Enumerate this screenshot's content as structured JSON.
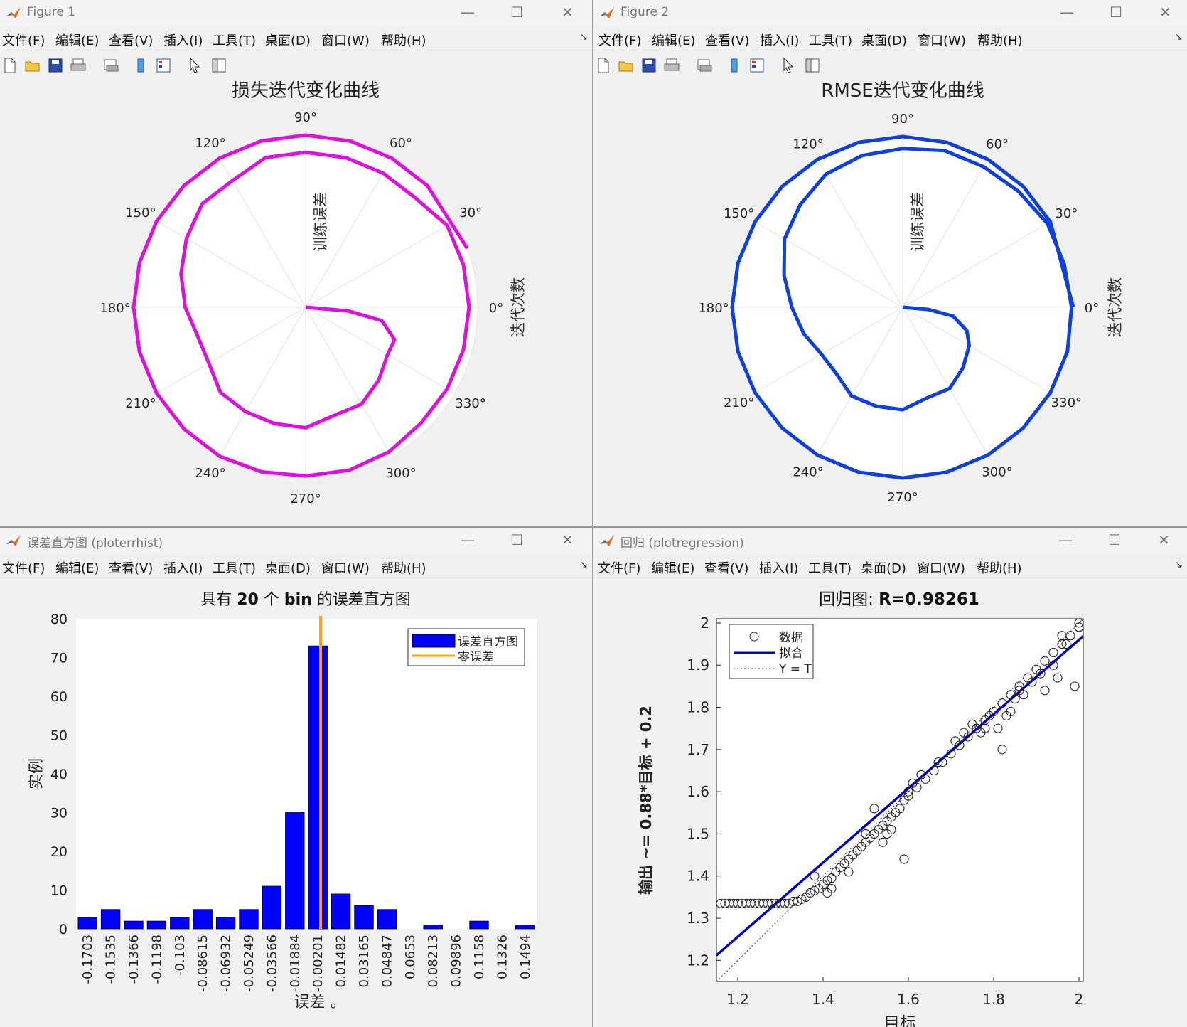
{
  "menu_items": [
    "文件(F)",
    "编辑(E)",
    "查看(V)",
    "插入(I)",
    "工具(T)",
    "桌面(D)",
    "窗口(W)",
    "帮助(H)"
  ],
  "window_controls": {
    "minimize": "—",
    "maximize": "☐",
    "close": "✕"
  },
  "toolbar_icons": [
    "new-figure-icon",
    "open-file-icon",
    "save-icon",
    "print-icon",
    "print-preview-icon",
    "colorbar-icon",
    "legend-icon",
    "pointer-icon",
    "property-editor-icon"
  ],
  "colors": {
    "loss_curve": "#dd10dd",
    "rmse_curve": "#0f3fdc",
    "hist_bars": "#0000ff",
    "zero_error_line": "#ff9f1a",
    "fit_line": "#0000cc"
  },
  "windows": {
    "fig1": {
      "title": "Figure 1"
    },
    "fig2": {
      "title": "Figure 2"
    },
    "hist": {
      "title": "误差直方图 (ploterrhist)"
    },
    "regr": {
      "title": "回归 (plotregression)"
    }
  },
  "chart_data": [
    {
      "type": "line",
      "projection": "polar",
      "title": "损失迭代变化曲线",
      "radial_label": "训练误差",
      "side_label": "迭代次数",
      "angle_ticks": [
        "0°",
        "30°",
        "60°",
        "90°",
        "120°",
        "150°",
        "180°",
        "210°",
        "240°",
        "270°",
        "300°",
        "330°"
      ],
      "angle_deg": [
        0,
        -5,
        -10,
        -20,
        -30,
        -45,
        -60,
        -75,
        -90,
        -105,
        -120,
        -135,
        -150,
        -165,
        -180,
        -195,
        -210,
        -225,
        -240,
        -255,
        -270,
        -285,
        -300,
        -315,
        -330,
        -345,
        -360,
        -375,
        -390,
        -405,
        -420,
        -435,
        -450,
        -465,
        -480,
        -495,
        -510,
        -525,
        -540,
        -555,
        -570,
        -585,
        -600,
        -615,
        -630,
        -645,
        -660,
        -675,
        -700
      ],
      "radius": [
        0,
        0.25,
        0.45,
        0.55,
        0.55,
        0.6,
        0.65,
        0.65,
        0.7,
        0.7,
        0.7,
        0.7,
        0.65,
        0.65,
        0.7,
        0.75,
        0.8,
        0.85,
        0.85,
        0.9,
        0.9,
        0.9,
        0.9,
        0.9,
        0.95,
        0.95,
        0.95,
        0.95,
        0.95,
        0.95,
        0.97,
        0.98,
        0.98,
        0.99,
        1.0,
        1.0,
        1.0,
        1.0,
        1.0,
        1.0,
        1.0,
        1.0,
        1.0,
        1.0,
        1.0,
        1.0,
        1.0,
        1.0,
        1.0
      ],
      "grid": true
    },
    {
      "type": "line",
      "projection": "polar",
      "title": "RMSE迭代变化曲线",
      "radial_label": "训练误差",
      "side_label": "迭代次数",
      "angle_ticks": [
        "0°",
        "30°",
        "60°",
        "90°",
        "120°",
        "150°",
        "180°",
        "210°",
        "240°",
        "270°",
        "300°",
        "330°"
      ],
      "angle_deg": [
        0,
        -5,
        -10,
        -20,
        -30,
        -45,
        -60,
        -75,
        -90,
        -105,
        -120,
        -135,
        -150,
        -165,
        -180,
        -195,
        -210,
        -225,
        -240,
        -255,
        -270,
        -285,
        -300,
        -315,
        -330,
        -345,
        -360,
        -375,
        -390,
        -405,
        -420,
        -435,
        -450,
        -465,
        -480,
        -495,
        -510,
        -525,
        -540,
        -555,
        -570,
        -585,
        -600,
        -615,
        -630,
        -645,
        -660,
        -675,
        -690,
        -720
      ],
      "radius": [
        0,
        0.15,
        0.3,
        0.4,
        0.45,
        0.5,
        0.55,
        0.55,
        0.6,
        0.6,
        0.6,
        0.55,
        0.55,
        0.6,
        0.65,
        0.72,
        0.8,
        0.85,
        0.9,
        0.92,
        0.93,
        0.95,
        0.95,
        0.96,
        0.98,
        0.98,
        0.99,
        1.0,
        1.0,
        1.0,
        1.0,
        1.0,
        1.0,
        1.0,
        1.0,
        1.0,
        1.0,
        1.0,
        1.0,
        1.0,
        1.0,
        1.0,
        1.0,
        1.0,
        1.0,
        1.0,
        1.0,
        1.0,
        1.0,
        1.0
      ],
      "grid": true
    },
    {
      "type": "bar",
      "title_parts": [
        "具有 ",
        "20",
        " 个 ",
        "bin",
        " 的误差直方图"
      ],
      "xlabel": "误差 。",
      "ylabel": "实例",
      "categories": [
        "-0.1703",
        "-0.1535",
        "-0.1366",
        "-0.1198",
        "-0.103",
        "-0.08615",
        "-0.06932",
        "-0.05249",
        "-0.03566",
        "-0.01884",
        "-0.00201",
        "0.01482",
        "0.03165",
        "0.04847",
        "0.0653",
        "0.08213",
        "0.09896",
        "0.1158",
        "0.1326",
        "0.1494"
      ],
      "values": [
        3,
        5,
        2,
        2,
        3,
        5,
        3,
        5,
        11,
        30,
        73,
        9,
        6,
        5,
        0,
        1,
        0,
        2,
        0,
        1
      ],
      "ylim": [
        0,
        80
      ],
      "yticks": [
        0,
        10,
        20,
        30,
        40,
        50,
        60,
        70,
        80
      ],
      "zero_line": 0,
      "legend": [
        "误差直方图",
        "零误差"
      ],
      "legend_position": "top-right"
    },
    {
      "type": "scatter",
      "title_prefix": "回归图: ",
      "title_value": "R=0.98261",
      "xlabel": "目标",
      "ylabel": "输出 ~= 0.88*目标 + 0.2",
      "xlim": [
        1.15,
        2.01
      ],
      "ylim": [
        1.15,
        2.01
      ],
      "xticks": [
        1.2,
        1.4,
        1.6,
        1.8,
        2
      ],
      "yticks": [
        1.2,
        1.3,
        1.4,
        1.5,
        1.6,
        1.7,
        1.8,
        1.9,
        2
      ],
      "fit": {
        "slope": 0.88,
        "intercept": 0.2
      },
      "legend": [
        "数据",
        "拟合",
        "Y = T"
      ],
      "legend_position": "top-left",
      "points": [
        [
          1.16,
          1.335
        ],
        [
          1.17,
          1.335
        ],
        [
          1.18,
          1.335
        ],
        [
          1.19,
          1.335
        ],
        [
          1.2,
          1.335
        ],
        [
          1.21,
          1.335
        ],
        [
          1.22,
          1.335
        ],
        [
          1.23,
          1.335
        ],
        [
          1.24,
          1.335
        ],
        [
          1.25,
          1.335
        ],
        [
          1.26,
          1.335
        ],
        [
          1.27,
          1.335
        ],
        [
          1.28,
          1.335
        ],
        [
          1.29,
          1.335
        ],
        [
          1.3,
          1.335
        ],
        [
          1.31,
          1.335
        ],
        [
          1.32,
          1.335
        ],
        [
          1.33,
          1.34
        ],
        [
          1.34,
          1.34
        ],
        [
          1.35,
          1.345
        ],
        [
          1.36,
          1.35
        ],
        [
          1.37,
          1.36
        ],
        [
          1.38,
          1.365
        ],
        [
          1.39,
          1.37
        ],
        [
          1.4,
          1.38
        ],
        [
          1.41,
          1.39
        ],
        [
          1.42,
          1.395
        ],
        [
          1.43,
          1.41
        ],
        [
          1.44,
          1.42
        ],
        [
          1.45,
          1.43
        ],
        [
          1.46,
          1.44
        ],
        [
          1.47,
          1.45
        ],
        [
          1.48,
          1.46
        ],
        [
          1.49,
          1.47
        ],
        [
          1.5,
          1.48
        ],
        [
          1.51,
          1.49
        ],
        [
          1.52,
          1.5
        ],
        [
          1.53,
          1.51
        ],
        [
          1.54,
          1.52
        ],
        [
          1.55,
          1.53
        ],
        [
          1.56,
          1.54
        ],
        [
          1.57,
          1.55
        ],
        [
          1.58,
          1.56
        ],
        [
          1.59,
          1.58
        ],
        [
          1.6,
          1.59
        ],
        [
          1.62,
          1.61
        ],
        [
          1.64,
          1.63
        ],
        [
          1.66,
          1.65
        ],
        [
          1.68,
          1.67
        ],
        [
          1.7,
          1.69
        ],
        [
          1.72,
          1.71
        ],
        [
          1.74,
          1.73
        ],
        [
          1.76,
          1.75
        ],
        [
          1.78,
          1.77
        ],
        [
          1.8,
          1.79
        ],
        [
          1.82,
          1.81
        ],
        [
          1.84,
          1.83
        ],
        [
          1.86,
          1.85
        ],
        [
          1.88,
          1.87
        ],
        [
          1.9,
          1.89
        ],
        [
          1.92,
          1.91
        ],
        [
          1.94,
          1.93
        ],
        [
          1.96,
          1.95
        ],
        [
          1.98,
          1.97
        ],
        [
          2.0,
          1.99
        ],
        [
          1.38,
          1.4
        ],
        [
          1.41,
          1.36
        ],
        [
          1.42,
          1.37
        ],
        [
          1.46,
          1.41
        ],
        [
          1.5,
          1.5
        ],
        [
          1.52,
          1.56
        ],
        [
          1.54,
          1.48
        ],
        [
          1.55,
          1.5
        ],
        [
          1.56,
          1.51
        ],
        [
          1.59,
          1.44
        ],
        [
          1.6,
          1.6
        ],
        [
          1.61,
          1.62
        ],
        [
          1.63,
          1.64
        ],
        [
          1.67,
          1.67
        ],
        [
          1.71,
          1.72
        ],
        [
          1.73,
          1.74
        ],
        [
          1.75,
          1.76
        ],
        [
          1.77,
          1.74
        ],
        [
          1.78,
          1.75
        ],
        [
          1.79,
          1.78
        ],
        [
          1.81,
          1.75
        ],
        [
          1.82,
          1.7
        ],
        [
          1.83,
          1.78
        ],
        [
          1.84,
          1.79
        ],
        [
          1.85,
          1.82
        ],
        [
          1.86,
          1.84
        ],
        [
          1.87,
          1.83
        ],
        [
          1.89,
          1.86
        ],
        [
          1.91,
          1.88
        ],
        [
          1.92,
          1.84
        ],
        [
          1.94,
          1.9
        ],
        [
          1.95,
          1.87
        ],
        [
          1.96,
          1.97
        ],
        [
          1.97,
          1.95
        ],
        [
          1.99,
          1.85
        ],
        [
          2.0,
          1.99
        ],
        [
          2.0,
          2.0
        ]
      ]
    }
  ]
}
